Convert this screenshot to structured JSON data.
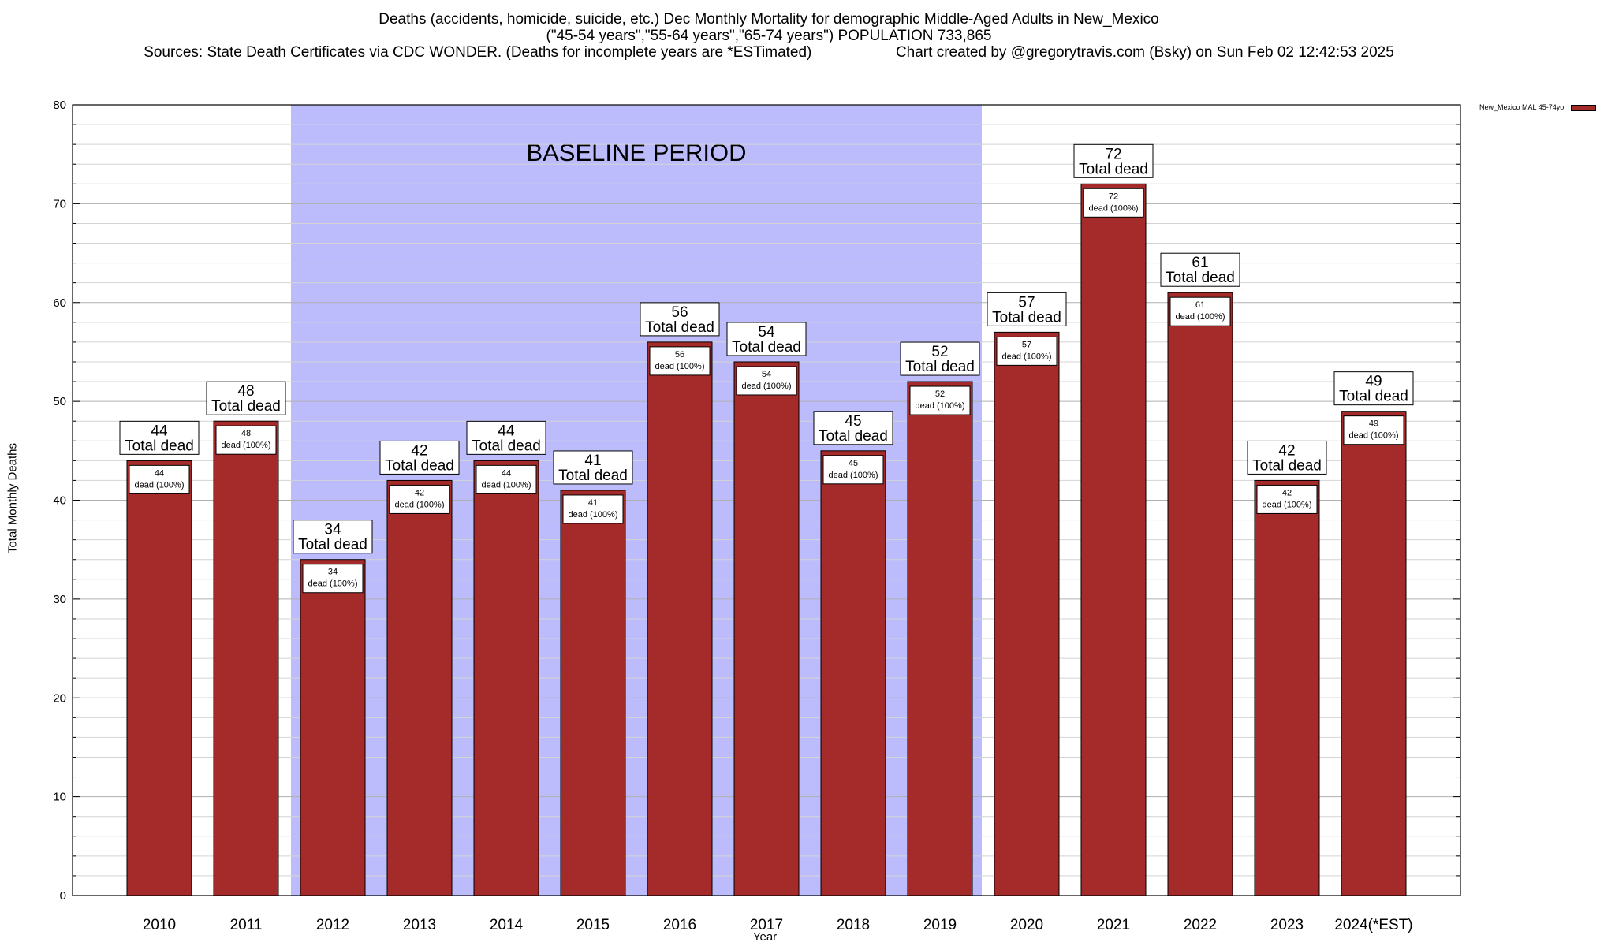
{
  "title_lines": {
    "line1": "Deaths (accidents, homicide, suicide, etc.) Dec Monthly Mortality for demographic Middle-Aged Adults in New_Mexico",
    "line2": "(\"45-54 years\",\"55-64 years\",\"65-74 years\") POPULATION 733,865",
    "line3_left": "Sources: State Death Certificates via CDC WONDER. (Deaths for incomplete years are *ESTimated)",
    "line3_right": "Chart created by @gregorytravis.com (Bsky) on Sun Feb 02 12:42:53 2025"
  },
  "legend": {
    "label": "New_Mexico MAL 45-74yo",
    "color": "#a52a2a"
  },
  "baseline": {
    "label": "BASELINE PERIOD",
    "color": "#bcbcfc",
    "from": "2012",
    "to": "2019"
  },
  "chart_data": {
    "type": "bar",
    "categories": [
      "2010",
      "2011",
      "2012",
      "2013",
      "2014",
      "2015",
      "2016",
      "2017",
      "2018",
      "2019",
      "2020",
      "2021",
      "2022",
      "2023",
      "2024(*EST)"
    ],
    "series": [
      {
        "name": "New_Mexico MAL 45-74yo",
        "values": [
          44,
          48,
          34,
          42,
          44,
          41,
          56,
          54,
          45,
          52,
          57,
          72,
          61,
          42,
          49
        ]
      }
    ],
    "top_label_suffix": "Total dead",
    "inner_label_suffix": "dead (100%)",
    "xlabel": "Year",
    "ylabel": "Total Monthly Deaths",
    "ylim": [
      0,
      80
    ],
    "yticks": [
      0,
      10,
      20,
      30,
      40,
      50,
      60,
      70,
      80
    ],
    "grid": true,
    "bar_color": "#a52a2a"
  }
}
